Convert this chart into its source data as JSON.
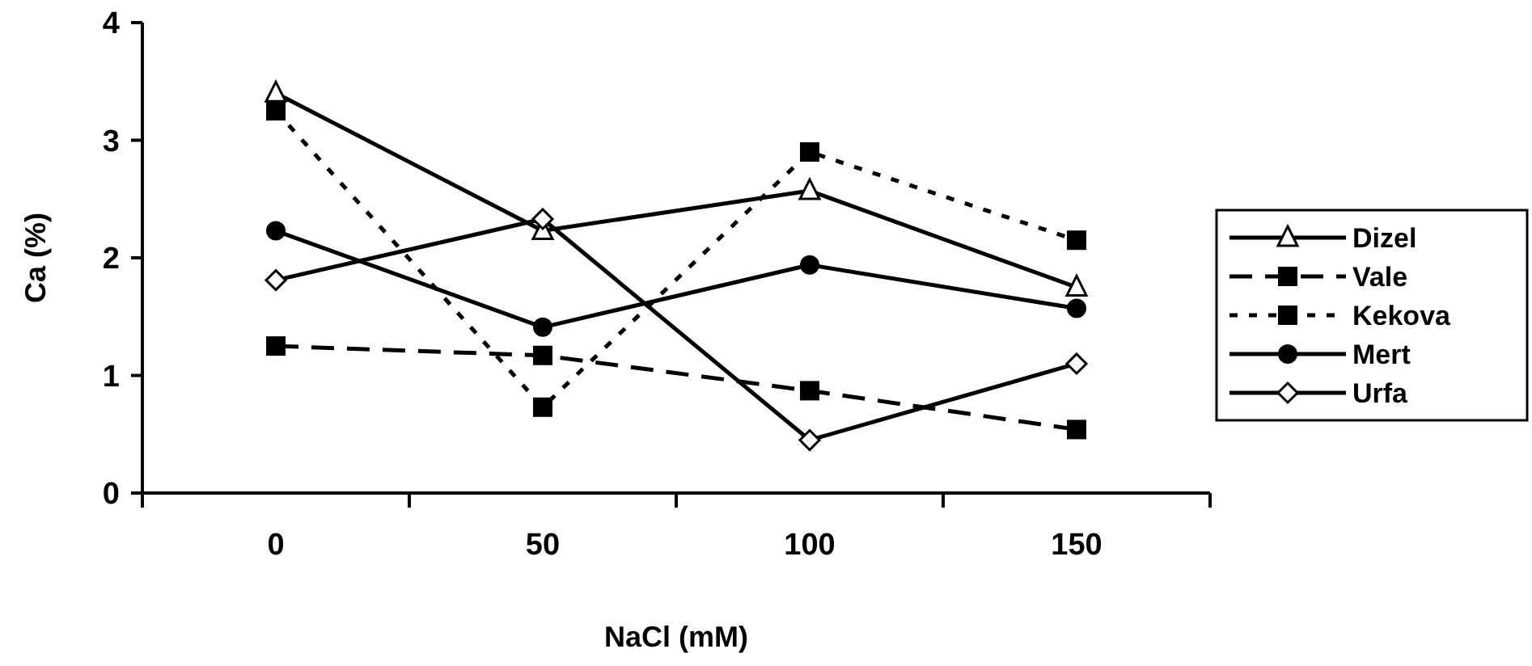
{
  "chart_data": {
    "type": "line",
    "xlabel": "NaCl (mM)",
    "ylabel": "Ca (%)",
    "categories": [
      "0",
      "50",
      "100",
      "150"
    ],
    "ylim": [
      0,
      4
    ],
    "yticks": [
      0,
      1,
      2,
      3,
      4
    ],
    "grid": false,
    "legend": "right",
    "series": [
      {
        "name": "Dizel",
        "color": "#000000",
        "values": [
          3.4,
          2.23,
          2.57,
          1.75
        ],
        "marker": "triangle",
        "line_style": "solid"
      },
      {
        "name": "Vale",
        "color": "#000000",
        "values": [
          1.25,
          1.17,
          0.87,
          0.54
        ],
        "marker": "square",
        "line_style": "dashed"
      },
      {
        "name": "Kekova",
        "color": "#000000",
        "values": [
          3.25,
          0.73,
          2.9,
          2.15
        ],
        "marker": "square",
        "line_style": "dotted"
      },
      {
        "name": "Mert",
        "color": "#000000",
        "values": [
          2.23,
          1.41,
          1.94,
          1.57
        ],
        "marker": "circle",
        "line_style": "solid"
      },
      {
        "name": "Urfa",
        "color": "#000000",
        "values": [
          1.81,
          2.33,
          0.45,
          1.1
        ],
        "marker": "diamond",
        "line_style": "solid"
      }
    ]
  }
}
